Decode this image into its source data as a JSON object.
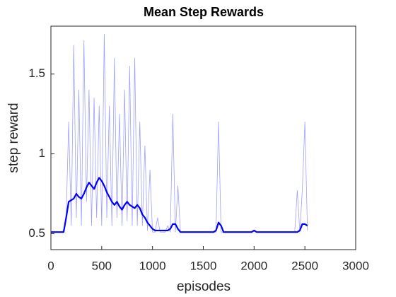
{
  "chart_data": {
    "type": "line",
    "title": "Mean Step Rewards",
    "xlabel": "episodes",
    "ylabel": "step reward",
    "x": [
      0,
      25,
      50,
      75,
      100,
      125,
      150,
      175,
      200,
      225,
      250,
      275,
      300,
      325,
      350,
      375,
      400,
      425,
      450,
      475,
      500,
      525,
      550,
      575,
      600,
      625,
      650,
      675,
      700,
      725,
      750,
      775,
      800,
      825,
      850,
      875,
      900,
      925,
      950,
      975,
      1000,
      1025,
      1050,
      1075,
      1100,
      1125,
      1150,
      1175,
      1200,
      1225,
      1250,
      1275,
      1300,
      1325,
      1350,
      1375,
      1400,
      1425,
      1450,
      1475,
      1500,
      1525,
      1550,
      1575,
      1600,
      1625,
      1650,
      1675,
      1700,
      1725,
      1750,
      1775,
      1800,
      1825,
      1850,
      1875,
      1900,
      1925,
      1950,
      1975,
      2000,
      2025,
      2050,
      2075,
      2100,
      2125,
      2150,
      2175,
      2200,
      2225,
      2250,
      2275,
      2300,
      2325,
      2350,
      2375,
      2400,
      2425,
      2450,
      2475,
      2500,
      2525
    ],
    "series": [
      {
        "color": "#7f7fff",
        "values": [
          0.51,
          0.51,
          0.51,
          0.51,
          0.51,
          0.52,
          0.6,
          1.2,
          0.55,
          1.68,
          0.6,
          1.4,
          0.55,
          1.71,
          0.7,
          1.4,
          0.55,
          1.35,
          0.6,
          1.3,
          0.55,
          1.75,
          0.6,
          1.3,
          0.55,
          1.6,
          0.6,
          1.25,
          0.55,
          1.4,
          0.58,
          1.55,
          0.55,
          1.6,
          0.55,
          1.2,
          0.55,
          1.05,
          0.52,
          0.9,
          0.51,
          0.51,
          0.6,
          0.51,
          0.51,
          0.51,
          0.55,
          0.51,
          1.25,
          0.51,
          0.8,
          0.51,
          0.51,
          0.51,
          0.51,
          0.51,
          0.51,
          0.51,
          0.51,
          0.51,
          0.51,
          0.51,
          0.51,
          0.51,
          0.51,
          0.51,
          1.2,
          0.51,
          0.51,
          0.51,
          0.51,
          0.51,
          0.51,
          0.51,
          0.51,
          0.51,
          0.51,
          0.51,
          0.51,
          0.51,
          0.52,
          0.51,
          0.51,
          0.51,
          0.51,
          0.51,
          0.51,
          0.51,
          0.51,
          0.51,
          0.51,
          0.51,
          0.51,
          0.51,
          0.51,
          0.51,
          0.51,
          0.77,
          0.51,
          0.78,
          1.2,
          0.52
        ]
      },
      {
        "color": "#0000ff",
        "values": [
          0.51,
          0.51,
          0.51,
          0.51,
          0.51,
          0.51,
          0.6,
          0.7,
          0.71,
          0.72,
          0.75,
          0.73,
          0.72,
          0.75,
          0.79,
          0.82,
          0.8,
          0.78,
          0.82,
          0.85,
          0.83,
          0.8,
          0.76,
          0.73,
          0.7,
          0.68,
          0.7,
          0.67,
          0.65,
          0.68,
          0.7,
          0.68,
          0.67,
          0.66,
          0.68,
          0.66,
          0.62,
          0.6,
          0.57,
          0.55,
          0.53,
          0.52,
          0.52,
          0.52,
          0.52,
          0.52,
          0.52,
          0.53,
          0.56,
          0.56,
          0.53,
          0.51,
          0.51,
          0.51,
          0.51,
          0.51,
          0.51,
          0.51,
          0.51,
          0.51,
          0.51,
          0.51,
          0.51,
          0.51,
          0.51,
          0.52,
          0.57,
          0.55,
          0.51,
          0.51,
          0.51,
          0.51,
          0.51,
          0.51,
          0.51,
          0.51,
          0.51,
          0.51,
          0.51,
          0.51,
          0.52,
          0.51,
          0.51,
          0.51,
          0.51,
          0.51,
          0.51,
          0.51,
          0.51,
          0.51,
          0.51,
          0.51,
          0.51,
          0.51,
          0.51,
          0.51,
          0.51,
          0.51,
          0.52,
          0.56,
          0.56,
          0.55
        ]
      }
    ],
    "xlim": [
      0,
      3000
    ],
    "xticks": [
      0,
      500,
      1000,
      1500,
      2000,
      2500,
      3000
    ],
    "ylim": [
      0.4,
      1.8
    ],
    "yticks": [
      0.5,
      1,
      1.5
    ]
  }
}
